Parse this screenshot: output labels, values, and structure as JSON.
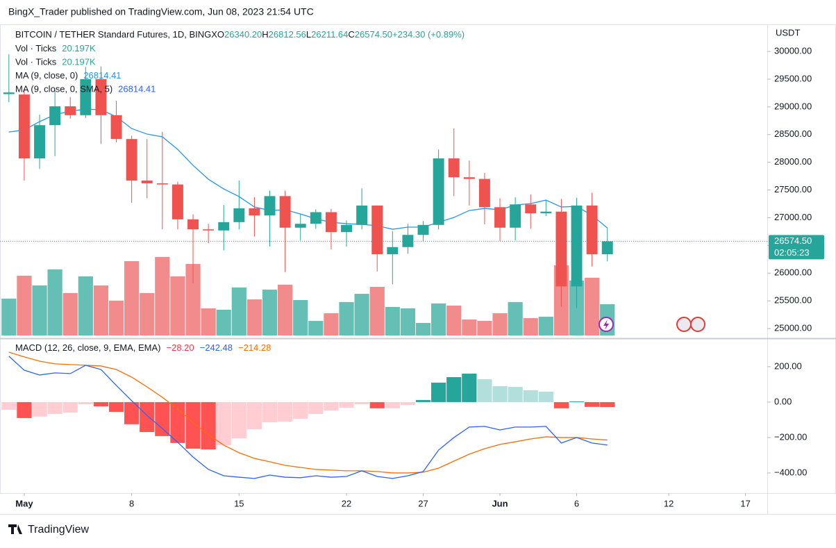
{
  "header": "BingX_Trader published on TradingView.com, Jun 08, 2023 21:54 UTC",
  "footer": "TradingView",
  "chart_data": [
    {
      "type": "candlestick",
      "title": "BITCOIN / TETHER Standard Futures, 1D, BINGX",
      "ohlc": [
        {
          "label": "O",
          "value": "26340.20"
        },
        {
          "label": "H",
          "value": "26812.56"
        },
        {
          "label": "L",
          "value": "26211.64"
        },
        {
          "label": "C",
          "value": "26574.50"
        }
      ],
      "change": "+234.30 (+0.89%)",
      "indicators": [
        {
          "name": "Vol · Ticks",
          "value": "20.197K",
          "color": "#26a69a"
        },
        {
          "name": "Vol · Ticks",
          "value": "20.197K",
          "color": "#26a69a"
        },
        {
          "name": "MA (9, close, 0)",
          "value": "26814.41",
          "color": "#2196f3"
        },
        {
          "name": "MA (9, close, 0, SMA, 5)",
          "value": "26814.41",
          "color": "#2962ff"
        }
      ],
      "axis_unit": "USDT",
      "last_price_label": "26574.50",
      "countdown": "02:05:23",
      "up_color": "#26a69a",
      "down_color": "#ef5350",
      "x": [
        0,
        1,
        2,
        3,
        4,
        5,
        6,
        7,
        8,
        9,
        10,
        11,
        12,
        13,
        14,
        15,
        16,
        17,
        18,
        19,
        20,
        21,
        22,
        23,
        24,
        25,
        26,
        27,
        28,
        29,
        30,
        31,
        32,
        33,
        34,
        35,
        36,
        37,
        38,
        39
      ],
      "open": [
        29230,
        29223,
        28070,
        28670,
        29010,
        28850,
        29500,
        28850,
        28420,
        27670,
        27620,
        27600,
        26970,
        26790,
        26770,
        26920,
        27170,
        27040,
        27390,
        26820,
        26890,
        27100,
        26740,
        26870,
        27220,
        26340,
        26470,
        26690,
        26870,
        28070,
        27730,
        27700,
        27190,
        26820,
        27240,
        27080,
        27110,
        25760,
        27220,
        26340.2
      ],
      "high": [
        29950,
        29300,
        28860,
        29300,
        29180,
        29720,
        29730,
        29110,
        28480,
        28420,
        28550,
        27650,
        27060,
        26890,
        27230,
        27670,
        27370,
        27490,
        27490,
        27060,
        27150,
        27160,
        26950,
        27530,
        27220,
        26760,
        26890,
        26940,
        28230,
        28610,
        28030,
        27810,
        27350,
        27370,
        27420,
        27310,
        27340,
        27360,
        27450,
        26812.56
      ],
      "low": [
        29085,
        27670,
        27880,
        28110,
        28790,
        28800,
        28330,
        28360,
        27270,
        27350,
        26790,
        26790,
        25815,
        26540,
        26410,
        26790,
        26660,
        26480,
        26020,
        26590,
        26800,
        26430,
        26480,
        26790,
        26030,
        25800,
        26350,
        26580,
        26790,
        27390,
        27220,
        26880,
        26580,
        26590,
        26800,
        27030,
        25390,
        25370,
        26120,
        26211.64
      ],
      "close": [
        29260,
        28070,
        28670,
        29010,
        28850,
        29500,
        28850,
        28420,
        27670,
        27620,
        27600,
        26970,
        26790,
        26770,
        26920,
        27170,
        27040,
        27390,
        26820,
        26890,
        27100,
        26740,
        26870,
        27220,
        26340,
        26470,
        26690,
        26870,
        28070,
        27730,
        27700,
        27190,
        26820,
        27240,
        27080,
        27110,
        25760,
        27220,
        26340,
        26574.5
      ],
      "volume": {
        "up_color": "#66bfb5",
        "down_color": "#f28b8b",
        "ylim": [
          0,
          201000
        ],
        "values": [
          23800,
          38600,
          32300,
          42700,
          27400,
          38200,
          32300,
          22500,
          48000,
          27400,
          50700,
          38200,
          46200,
          17500,
          16600,
          31000,
          23300,
          29600,
          32800,
          22900,
          9400,
          14400,
          21600,
          26900,
          31400,
          18400,
          17500,
          8100,
          20700,
          19300,
          10300,
          9400,
          14400,
          21600,
          11200,
          12100,
          45300,
          35500,
          37300,
          20197
        ]
      },
      "ma": {
        "color": "#2196f3",
        "values": [
          28546,
          28584,
          28734,
          28860,
          28922,
          28960,
          28947,
          28822,
          28609,
          28509,
          28459,
          28233,
          27945,
          27694,
          27519,
          27381,
          27193,
          27130,
          27143,
          27067,
          26980,
          26917,
          26892,
          26880,
          26855,
          26792,
          26830,
          26830,
          26917,
          27005,
          27130,
          27168,
          27143,
          27230,
          27255,
          27318,
          27193,
          27205,
          27043,
          26814.41
        ]
      },
      "xlim": [
        -0.58,
        49.42
      ],
      "xticks": [
        {
          "value": 1,
          "label": "May"
        },
        8,
        15,
        22,
        27,
        {
          "value": 32,
          "label": "Jun"
        },
        {
          "value": 37,
          "label": "6"
        },
        {
          "value": 43,
          "label": "12"
        },
        {
          "value": 48,
          "label": "17"
        }
      ],
      "ylim": [
        24875,
        30490
      ],
      "yticks": [
        {
          "value": 25000,
          "label": "25000.00"
        },
        {
          "value": 25500,
          "label": "25500.00"
        },
        {
          "value": 26000,
          "label": "26000.00"
        },
        {
          "value": 26500,
          "label": "26500.00"
        },
        {
          "value": 27000,
          "label": "27000.00"
        },
        {
          "value": 27500,
          "label": "27500.00"
        },
        {
          "value": 28000,
          "label": "28000.00"
        },
        {
          "value": 28500,
          "label": "28500.00"
        },
        {
          "value": 29000,
          "label": "29000.00"
        },
        {
          "value": 29500,
          "label": "29500.00"
        },
        {
          "value": 30000,
          "label": "30000.00"
        }
      ]
    },
    {
      "type": "macd",
      "title": "MACD (12, 26, close, 9, EMA, EMA)",
      "legend_values": [
        {
          "value": "−28.20",
          "color": "#f23645"
        },
        {
          "value": "−242.48",
          "color": "#2962ff"
        },
        {
          "value": "−214.28",
          "color": "#ff6d00"
        }
      ],
      "ylim": [
        -514,
        341
      ],
      "yticks": [
        {
          "value": 200,
          "label": "200.00"
        },
        {
          "value": 0,
          "label": "0.00"
        },
        {
          "value": -200,
          "label": "−200.00"
        },
        {
          "value": -400,
          "label": "−400.00"
        }
      ],
      "histogram": {
        "colors": {
          "up_rising": "#26a69a",
          "up_falling": "#b2dfdb",
          "down_falling": "#ff5252",
          "down_rising": "#ffcdd2"
        },
        "values": [
          -43,
          -90,
          -82,
          -67,
          -59,
          -12,
          -24,
          -55,
          -125,
          -169,
          -192,
          -231,
          -263,
          -267,
          -243,
          -204,
          -153,
          -114,
          -110,
          -94,
          -67,
          -47,
          -31,
          -12,
          -35,
          -35,
          -16,
          12,
          110,
          141,
          161,
          129,
          90,
          86,
          67,
          59,
          -35,
          4,
          -27,
          -28.2
        ]
      },
      "macd": {
        "color": "#2962ff",
        "values": [
          259,
          180,
          153,
          165,
          161,
          208,
          184,
          94,
          8,
          -75,
          -149,
          -227,
          -310,
          -380,
          -416,
          -424,
          -431,
          -412,
          -424,
          -427,
          -416,
          -424,
          -420,
          -388,
          -420,
          -431,
          -416,
          -392,
          -271,
          -200,
          -141,
          -137,
          -157,
          -141,
          -141,
          -137,
          -231,
          -200,
          -231,
          -242.48
        ]
      },
      "signal": {
        "color": "#ff6d00",
        "values": [
          282,
          255,
          231,
          216,
          212,
          208,
          204,
          184,
          141,
          86,
          27,
          -39,
          -114,
          -184,
          -243,
          -286,
          -318,
          -337,
          -357,
          -369,
          -380,
          -384,
          -388,
          -388,
          -392,
          -400,
          -400,
          -396,
          -373,
          -333,
          -294,
          -263,
          -239,
          -224,
          -208,
          -196,
          -200,
          -200,
          -208,
          -214.28
        ]
      }
    }
  ]
}
